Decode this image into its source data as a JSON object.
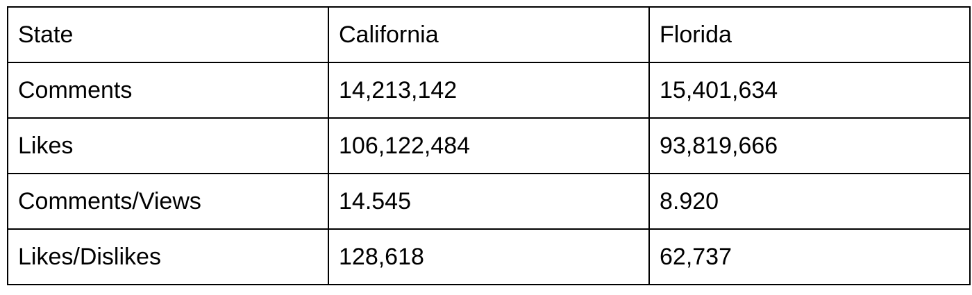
{
  "table": {
    "header": [
      "State",
      "California",
      "Florida"
    ],
    "rows": [
      [
        "Comments",
        "14,213,142",
        "15,401,634"
      ],
      [
        "Likes",
        "106,122,484",
        "93,819,666"
      ],
      [
        "Comments/Views",
        "14.545",
        "8.920"
      ],
      [
        "Likes/Dislikes",
        "128,618",
        "62,737"
      ]
    ]
  }
}
